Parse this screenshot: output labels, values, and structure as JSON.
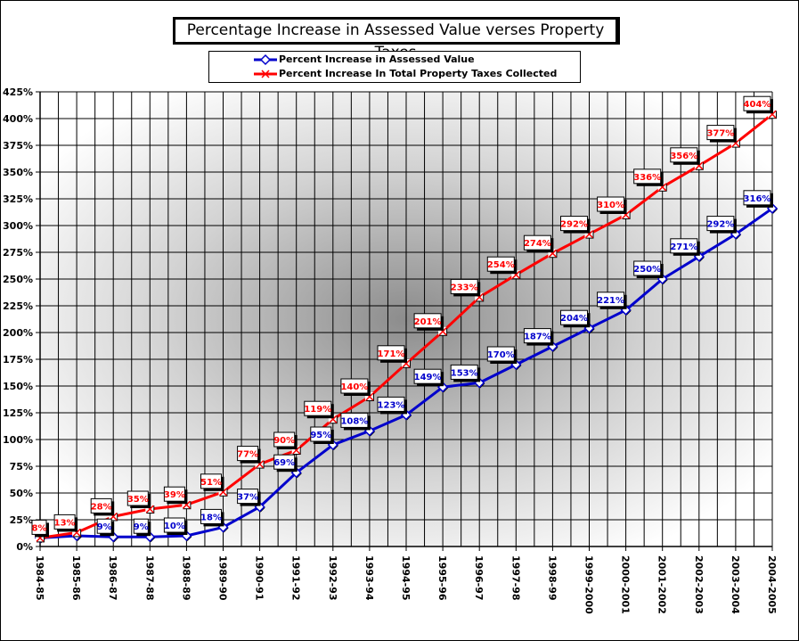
{
  "chart_data": {
    "type": "line",
    "title": "Percentage Increase in Assessed Value verses Property Taxes",
    "categories": [
      "1984-85",
      "1985-86",
      "1986-87",
      "1987-88",
      "1988-89",
      "1989-90",
      "1990-91",
      "1991-92",
      "1992-93",
      "1993-94",
      "1994-95",
      "1995-96",
      "1996-97",
      "1997-98",
      "1998-99",
      "1999-2000",
      "2000-2001",
      "2001-2002",
      "2002-2003",
      "2003-2004",
      "2004-2005"
    ],
    "series": [
      {
        "name": "Percent Increase in Assessed Value",
        "color": "#0000cc",
        "marker": "diamond",
        "values": [
          8,
          10,
          9,
          9,
          10,
          18,
          37,
          69,
          95,
          108,
          123,
          149,
          153,
          170,
          187,
          204,
          221,
          250,
          271,
          292,
          316
        ],
        "labels": [
          "",
          "",
          "9%",
          "9%",
          "10%",
          "18%",
          "37%",
          "69%",
          "95%",
          "108%",
          "123%",
          "149%",
          "153%",
          "170%",
          "187%",
          "204%",
          "221%",
          "250%",
          "271%",
          "292%",
          "316%"
        ]
      },
      {
        "name": "Percent Increase In Total Property Taxes Collected",
        "color": "#ff0000",
        "marker": "x",
        "values": [
          8,
          13,
          28,
          35,
          39,
          51,
          77,
          90,
          119,
          140,
          171,
          201,
          233,
          254,
          274,
          292,
          310,
          336,
          356,
          377,
          404
        ],
        "labels": [
          "8%",
          "13%",
          "28%",
          "35%",
          "39%",
          "51%",
          "77%",
          "90%",
          "119%",
          "140%",
          "171%",
          "201%",
          "233%",
          "254%",
          "274%",
          "292%",
          "310%",
          "336%",
          "356%",
          "377%",
          "404%"
        ]
      }
    ],
    "ylim": [
      0,
      425
    ],
    "yticks": [
      "0%",
      "25%",
      "50%",
      "75%",
      "100%",
      "125%",
      "150%",
      "175%",
      "200%",
      "225%",
      "250%",
      "275%",
      "300%",
      "325%",
      "350%",
      "375%",
      "400%",
      "425%"
    ],
    "grid": true,
    "legend_position": "top"
  }
}
